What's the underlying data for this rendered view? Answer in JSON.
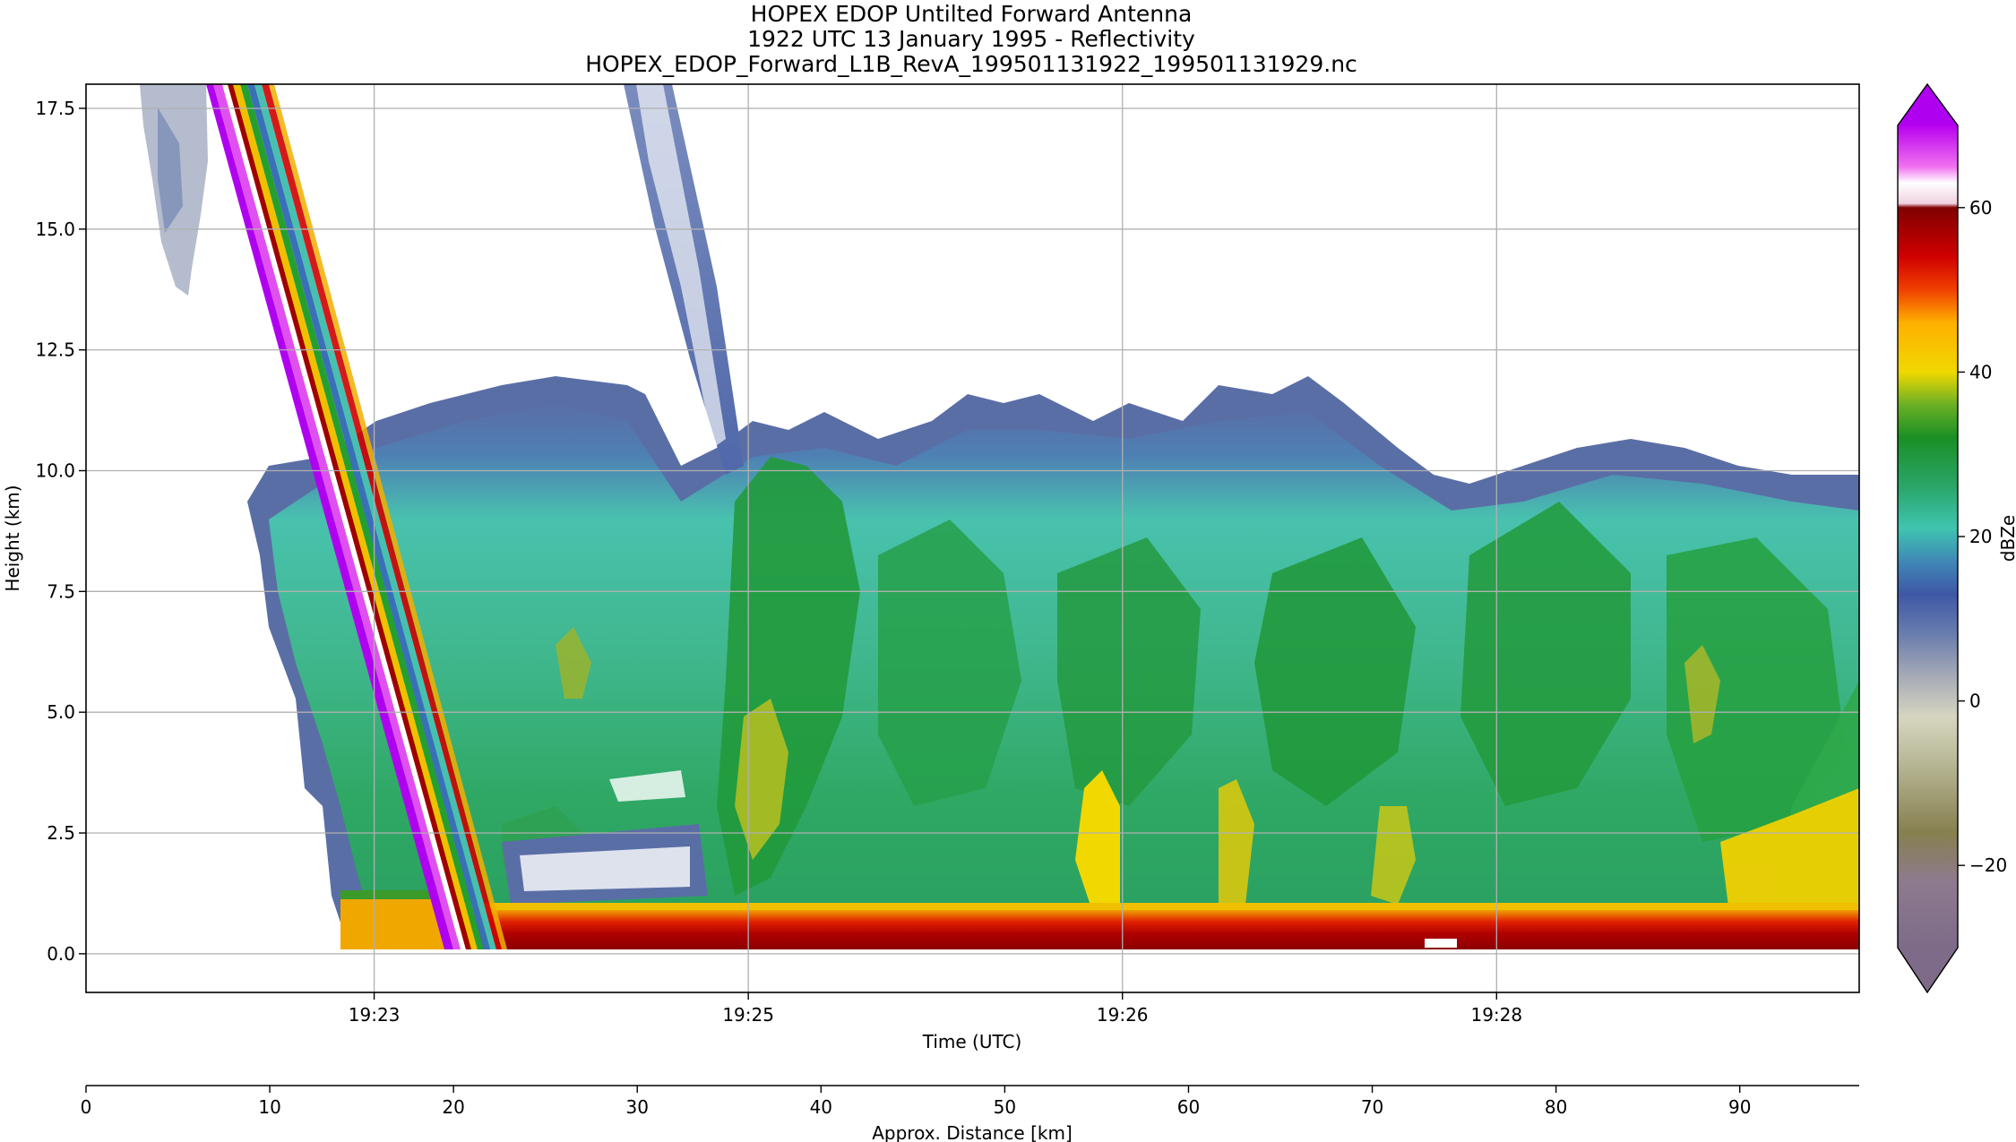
{
  "chart_data": {
    "type": "heatmap",
    "title_lines": [
      "HOPEX EDOP Untilted Forward Antenna",
      "1922 UTC 13 January 1995 - Reflectivity",
      "HOPEX_EDOP_Forward_L1B_RevA_199501131922_199501131929.nc"
    ],
    "xlabel": "Time (UTC)",
    "ylabel": "Height (km)",
    "x_ticks": [
      "19:23",
      "19:25",
      "19:26",
      "19:28"
    ],
    "y_ticks": [
      "0.0",
      "2.5",
      "5.0",
      "7.5",
      "10.0",
      "12.5",
      "15.0",
      "17.5"
    ],
    "ylim": [
      -0.8,
      18.0
    ],
    "grid": true,
    "colorbar": {
      "label": "dBZe",
      "ticks": [
        "−20",
        "0",
        "20",
        "40",
        "60"
      ],
      "range": [
        -30,
        70
      ],
      "extend": "both"
    },
    "secondary_axis": {
      "label": "Approx. Distance [km]",
      "ticks": [
        "0",
        "10",
        "20",
        "30",
        "40",
        "50",
        "60",
        "70",
        "80",
        "90"
      ],
      "range": [
        0,
        96.5
      ]
    },
    "echo_summary": {
      "surface_return_height_km": 0.0,
      "surface_return_dBZe": 55,
      "cloud_top_height_km": 10.5,
      "mid_level_dBZe": 25,
      "aircraft_artifact_dBZe": 65
    }
  },
  "colors": {
    "background": "#ffffff",
    "grid": "#b0b0b0",
    "axis": "#000000"
  }
}
